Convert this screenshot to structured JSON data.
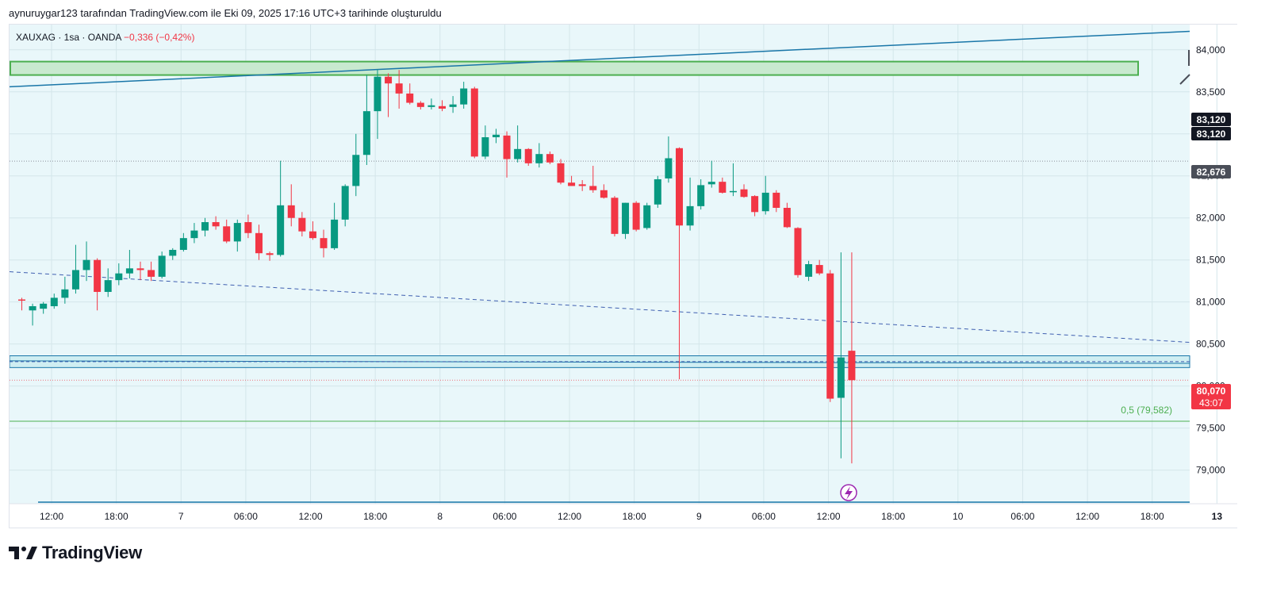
{
  "header": {
    "caption": "aynuruygar123 tarafından TradingView.com ile Eki 09, 2025 17:16 UTC+3 tarihinde oluşturuldu"
  },
  "legend": {
    "symbol": "XAUXAG · 1sa · OANDA",
    "change": "−0,336 (−0,42%)"
  },
  "brand": {
    "name": "TradingView"
  },
  "colors": {
    "up": "#089981",
    "down": "#f23645",
    "trend": "#1976a8",
    "zone": "#4caf50",
    "bg": "#e9f7fa"
  },
  "chart_data": {
    "type": "candlestick",
    "symbol": "XAUXAG",
    "timeframe": "1sa",
    "source": "OANDA",
    "ylim": [
      78600,
      84300
    ],
    "y_ticks": [
      "84,000",
      "83,500",
      "83,000",
      "82,500",
      "82,000",
      "81,500",
      "81,000",
      "80,500",
      "80,000",
      "79,500",
      "79,000"
    ],
    "x_tick_labels": [
      "12:00",
      "18:00",
      "7",
      "06:00",
      "12:00",
      "18:00",
      "8",
      "06:00",
      "12:00",
      "18:00",
      "9",
      "06:00",
      "12:00",
      "18:00",
      "10",
      "06:00",
      "12:00",
      "18:00",
      "13"
    ],
    "price_labels": [
      {
        "value": 83120,
        "text": "83,120",
        "style": "dark"
      },
      {
        "value": 83120,
        "text": "83,120",
        "style": "dark"
      },
      {
        "value": 82676,
        "text": "82,676",
        "style": "grey"
      },
      {
        "value": 80070,
        "text": "80,070",
        "sub": "43:07",
        "style": "red"
      }
    ],
    "fib_label": {
      "text": "0,5 (79,582)",
      "value": 79582
    },
    "candles": [
      [
        81030,
        81050,
        80900,
        81020
      ],
      [
        80900,
        80980,
        80720,
        80950
      ],
      [
        80920,
        81000,
        80860,
        80980
      ],
      [
        80950,
        81100,
        80920,
        81050
      ],
      [
        81050,
        81300,
        80980,
        81150
      ],
      [
        81150,
        81680,
        81100,
        81380
      ],
      [
        81380,
        81720,
        81250,
        81500
      ],
      [
        81500,
        81520,
        80900,
        81120
      ],
      [
        81120,
        81400,
        81060,
        81260
      ],
      [
        81260,
        81460,
        81200,
        81340
      ],
      [
        81340,
        81620,
        81280,
        81400
      ],
      [
        81400,
        81480,
        81260,
        81380
      ],
      [
        81380,
        81480,
        81250,
        81300
      ],
      [
        81300,
        81600,
        81280,
        81550
      ],
      [
        81550,
        81640,
        81500,
        81620
      ],
      [
        81620,
        81820,
        81600,
        81760
      ],
      [
        81760,
        81940,
        81700,
        81850
      ],
      [
        81850,
        82000,
        81780,
        81950
      ],
      [
        81950,
        82020,
        81860,
        81900
      ],
      [
        81900,
        81980,
        81700,
        81720
      ],
      [
        81720,
        81980,
        81600,
        81940
      ],
      [
        81950,
        82040,
        81760,
        81820
      ],
      [
        81820,
        81920,
        81500,
        81580
      ],
      [
        81580,
        81600,
        81490,
        81560
      ],
      [
        81560,
        82680,
        81540,
        82150
      ],
      [
        82150,
        82400,
        81900,
        82000
      ],
      [
        82000,
        82070,
        81780,
        81840
      ],
      [
        81840,
        81960,
        81740,
        81760
      ],
      [
        81760,
        81860,
        81530,
        81640
      ],
      [
        81640,
        82180,
        81620,
        81980
      ],
      [
        81980,
        82400,
        81900,
        82380
      ],
      [
        82380,
        83000,
        82260,
        82750
      ],
      [
        82750,
        83700,
        82630,
        83270
      ],
      [
        83270,
        83770,
        82940,
        83680
      ],
      [
        83680,
        83720,
        83200,
        83600
      ],
      [
        83600,
        83760,
        83300,
        83480
      ],
      [
        83480,
        83600,
        83350,
        83370
      ],
      [
        83370,
        83390,
        83290,
        83320
      ],
      [
        83320,
        83420,
        83290,
        83340
      ],
      [
        83330,
        83400,
        83270,
        83300
      ],
      [
        83320,
        83450,
        83250,
        83350
      ],
      [
        83350,
        83620,
        83300,
        83540
      ],
      [
        83540,
        83560,
        82710,
        82730
      ],
      [
        82730,
        83100,
        82700,
        82960
      ],
      [
        82960,
        83060,
        82890,
        82990
      ],
      [
        82980,
        83030,
        82480,
        82700
      ],
      [
        82700,
        83100,
        82660,
        82820
      ],
      [
        82820,
        82830,
        82620,
        82650
      ],
      [
        82650,
        82890,
        82600,
        82760
      ],
      [
        82760,
        82790,
        82640,
        82660
      ],
      [
        82650,
        82700,
        82400,
        82420
      ],
      [
        82420,
        82500,
        82380,
        82380
      ],
      [
        82400,
        82450,
        82320,
        82380
      ],
      [
        82380,
        82620,
        82300,
        82330
      ],
      [
        82330,
        82400,
        82230,
        82240
      ],
      [
        82240,
        82260,
        81780,
        81810
      ],
      [
        81810,
        82180,
        81750,
        82180
      ],
      [
        82180,
        82200,
        81840,
        81860
      ],
      [
        81880,
        82180,
        81860,
        82150
      ],
      [
        82160,
        82500,
        82120,
        82460
      ],
      [
        82470,
        82970,
        82420,
        82710
      ],
      [
        82830,
        82840,
        80080,
        81910
      ],
      [
        81910,
        82480,
        81850,
        82140
      ],
      [
        82140,
        82460,
        82100,
        82390
      ],
      [
        82400,
        82680,
        82360,
        82430
      ],
      [
        82430,
        82480,
        82290,
        82300
      ],
      [
        82310,
        82650,
        82260,
        82320
      ],
      [
        82340,
        82400,
        82240,
        82250
      ],
      [
        82260,
        82270,
        82020,
        82070
      ],
      [
        82080,
        82500,
        82040,
        82300
      ],
      [
        82300,
        82330,
        82070,
        82120
      ],
      [
        82120,
        82180,
        81880,
        81890
      ],
      [
        81880,
        81890,
        81290,
        81320
      ],
      [
        81300,
        81490,
        81250,
        81450
      ],
      [
        81440,
        81500,
        81320,
        81340
      ],
      [
        81340,
        81380,
        79810,
        79850
      ],
      [
        79860,
        81590,
        79140,
        80340
      ],
      [
        80420,
        81590,
        79080,
        80070
      ]
    ],
    "lines": [
      {
        "kind": "trendline",
        "from": [
          0,
          83560
        ],
        "to": [
          1488,
          84220
        ],
        "color": "#1976a8"
      },
      {
        "kind": "dashed-trendline",
        "from": [
          0,
          81360
        ],
        "to": [
          1488,
          80520
        ],
        "color": "#3f5fb0"
      },
      {
        "kind": "horizontal-zone",
        "y1": 80360,
        "y2": 80220,
        "color": "#1976a8"
      },
      {
        "kind": "fib-0.5",
        "value": 79582,
        "color": "#4caf50"
      },
      {
        "kind": "supply-zone",
        "y1": 83860,
        "y2": 83700,
        "x_end": 1422,
        "color": "#4caf50"
      }
    ]
  }
}
